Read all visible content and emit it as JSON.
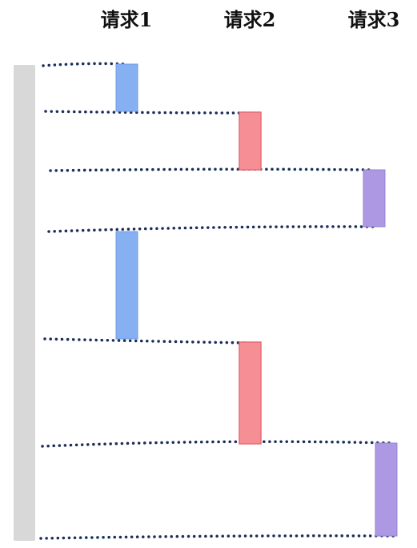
{
  "headers": [
    "请求1",
    "请求2",
    "请求3"
  ],
  "colors": {
    "timeline": "#d8d8d8",
    "dotted_line": "#1b2f5a",
    "request_1": "#86b0f2",
    "request_1_edge": "#6f9be6",
    "request_2": "#f58f95",
    "request_2_edge": "#e66b74",
    "request_3": "#ad98e3",
    "request_3_edge": "#9780d6"
  },
  "sequence": [
    {
      "request": 1,
      "order": 1,
      "relative_duration": "short"
    },
    {
      "request": 2,
      "order": 2,
      "relative_duration": "short"
    },
    {
      "request": 3,
      "order": 3,
      "relative_duration": "short"
    },
    {
      "request": 1,
      "order": 4,
      "relative_duration": "long"
    },
    {
      "request": 2,
      "order": 5,
      "relative_duration": "long"
    },
    {
      "request": 3,
      "order": 6,
      "relative_duration": "long"
    }
  ]
}
